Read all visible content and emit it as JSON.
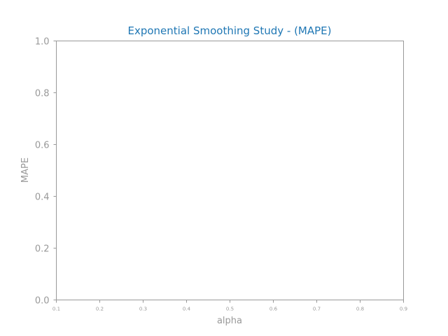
{
  "chart_data": {
    "type": "line",
    "title": "Exponential Smoothing Study - (MAPE)",
    "xlabel": "alpha",
    "ylabel": "MAPE",
    "xlim": [
      0.1,
      0.9
    ],
    "ylim": [
      0.0,
      1.0
    ],
    "xticks": [
      "0.1",
      "0.2",
      "0.3",
      "0.4",
      "0.5",
      "0.6",
      "0.7",
      "0.8",
      "0.9"
    ],
    "yticks": [
      "0.0",
      "0.2",
      "0.4",
      "0.6",
      "0.8",
      "1.0"
    ],
    "series": [],
    "grid": false,
    "colors": {
      "title": "#1f77b4",
      "axis": "#999999"
    }
  }
}
